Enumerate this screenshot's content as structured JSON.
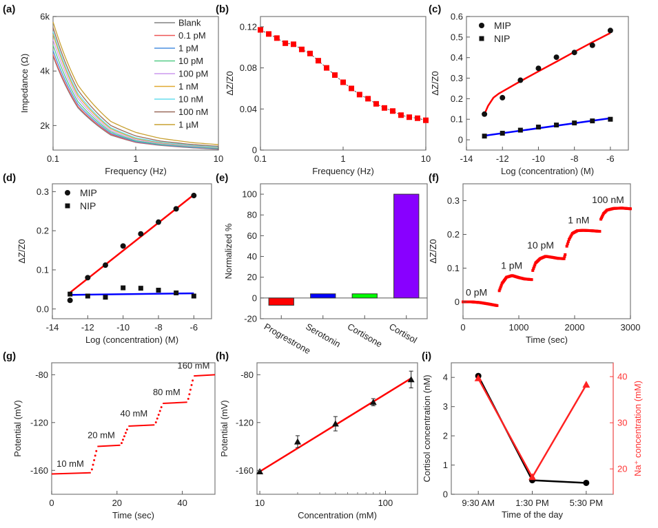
{
  "figure": {
    "panels": [
      "(a)",
      "(b)",
      "(c)",
      "(d)",
      "(e)",
      "(f)",
      "(g)",
      "(h)",
      "(i)"
    ]
  },
  "chart_data": [
    {
      "id": "a",
      "panel_label": "(a)",
      "type": "line",
      "xlabel": "Frequency (Hz)",
      "ylabel": "Impedance (Ω)",
      "xscale": "log",
      "xlim": [
        0.1,
        10
      ],
      "ylim": [
        1100,
        6000
      ],
      "xticks": [
        0.1,
        1,
        10
      ],
      "xtick_labels": [
        "0.1",
        "1",
        "10"
      ],
      "yticks": [
        2000,
        4000,
        6000
      ],
      "ytick_labels": [
        "2k",
        "4k",
        "6k"
      ],
      "legend_position": "top-right",
      "x": [
        0.1,
        0.2,
        0.5,
        1,
        2,
        5,
        10
      ],
      "series": [
        {
          "name": "Blank",
          "color": "#808080",
          "values": [
            4550,
            2650,
            1650,
            1380,
            1270,
            1180,
            1130
          ]
        },
        {
          "name": "0.1 pM",
          "color": "#ee5555",
          "values": [
            4600,
            2700,
            1680,
            1390,
            1280,
            1190,
            1140
          ]
        },
        {
          "name": "1 pM",
          "color": "#4a8fe0",
          "values": [
            4750,
            2780,
            1720,
            1410,
            1290,
            1200,
            1150
          ]
        },
        {
          "name": "10 pM",
          "color": "#55cc88",
          "values": [
            4950,
            2880,
            1770,
            1440,
            1310,
            1220,
            1170
          ]
        },
        {
          "name": "100 pM",
          "color": "#cc99ee",
          "values": [
            5150,
            3000,
            1820,
            1480,
            1340,
            1240,
            1190
          ]
        },
        {
          "name": "1 nM",
          "color": "#e0a830",
          "values": [
            5350,
            3100,
            1880,
            1520,
            1370,
            1260,
            1200
          ]
        },
        {
          "name": "10 nM",
          "color": "#66ddee",
          "values": [
            5450,
            3180,
            1920,
            1550,
            1390,
            1270,
            1210
          ]
        },
        {
          "name": "100 nM",
          "color": "#9a6a5a",
          "values": [
            5600,
            3300,
            2000,
            1620,
            1430,
            1300,
            1240
          ]
        },
        {
          "name": "1 µM",
          "color": "#c8a030",
          "values": [
            5800,
            3480,
            2150,
            1750,
            1530,
            1370,
            1300
          ]
        }
      ]
    },
    {
      "id": "b",
      "panel_label": "(b)",
      "type": "scatter",
      "xlabel": "Frequency (Hz)",
      "ylabel": "ΔZ/Z0",
      "xscale": "log",
      "xlim": [
        0.1,
        10
      ],
      "ylim": [
        0,
        0.13
      ],
      "xticks": [
        0.1,
        1,
        10
      ],
      "xtick_labels": [
        "0.1",
        "1",
        "10"
      ],
      "yticks": [
        0,
        0.04,
        0.08,
        0.12
      ],
      "ytick_labels": [
        "0",
        "0.04",
        "0.08",
        "0.12"
      ],
      "marker_color": "#ff0000",
      "x": [
        0.1,
        0.126,
        0.158,
        0.2,
        0.251,
        0.316,
        0.398,
        0.501,
        0.631,
        0.794,
        1.0,
        1.26,
        1.58,
        2.0,
        2.51,
        3.16,
        3.98,
        5.01,
        6.31,
        7.94,
        10.0
      ],
      "values": [
        0.117,
        0.113,
        0.109,
        0.104,
        0.103,
        0.098,
        0.094,
        0.087,
        0.08,
        0.073,
        0.066,
        0.06,
        0.054,
        0.05,
        0.045,
        0.041,
        0.038,
        0.034,
        0.032,
        0.031,
        0.029
      ]
    },
    {
      "id": "c",
      "panel_label": "(c)",
      "type": "scatter",
      "xlabel": "Log (concentration) (M)",
      "ylabel": "ΔZ/Z0",
      "xlim": [
        -14,
        -5
      ],
      "ylim": [
        -0.05,
        0.6
      ],
      "xticks": [
        -14,
        -12,
        -10,
        -8,
        -6
      ],
      "xtick_labels": [
        "-14",
        "-12",
        "-10",
        "-8",
        "-6"
      ],
      "yticks": [
        0,
        0.1,
        0.2,
        0.3,
        0.4,
        0.5,
        0.6
      ],
      "ytick_labels": [
        "0",
        "0.1",
        "0.2",
        "0.3",
        "0.4",
        "0.5",
        "0.6"
      ],
      "legend_position": "top-left",
      "x": [
        -13,
        -12,
        -11,
        -10,
        -9,
        -8,
        -7,
        -6
      ],
      "series": [
        {
          "name": "MIP",
          "marker": "circle",
          "fit_color": "#ff0000",
          "values": [
            0.125,
            0.205,
            0.29,
            0.348,
            0.402,
            0.425,
            0.46,
            0.532
          ],
          "fit": {
            "x": [
              -13,
              -12.8,
              -12.5,
              -12.2,
              -12,
              -11.5,
              -11,
              -10,
              -9,
              -8,
              -7,
              -6
            ],
            "y": [
              0.125,
              0.165,
              0.205,
              0.225,
              0.235,
              0.26,
              0.285,
              0.333,
              0.38,
              0.428,
              0.475,
              0.52
            ]
          }
        },
        {
          "name": "NIP",
          "marker": "square",
          "fit_color": "#0000ff",
          "values": [
            0.018,
            0.032,
            0.047,
            0.062,
            0.072,
            0.082,
            0.092,
            0.1
          ],
          "fit": {
            "x": [
              -13,
              -6
            ],
            "y": [
              0.02,
              0.105
            ]
          }
        }
      ]
    },
    {
      "id": "d",
      "panel_label": "(d)",
      "type": "scatter",
      "xlabel": "Log (concentration) (M)",
      "ylabel": "ΔZ/Z0",
      "xlim": [
        -14,
        -5
      ],
      "ylim": [
        -0.025,
        0.32
      ],
      "xticks": [
        -14,
        -12,
        -10,
        -8,
        -6
      ],
      "xtick_labels": [
        "-14",
        "-12",
        "-10",
        "-8",
        "-6"
      ],
      "yticks": [
        0,
        0.1,
        0.2,
        0.3
      ],
      "ytick_labels": [
        "0.0",
        "0.1",
        "0.2",
        "0.3"
      ],
      "legend_position": "top-left",
      "x": [
        -13,
        -12,
        -11,
        -10,
        -9,
        -8,
        -7,
        -6
      ],
      "series": [
        {
          "name": "MIP",
          "marker": "circle",
          "fit_color": "#ff0000",
          "values": [
            0.022,
            0.08,
            0.112,
            0.161,
            0.192,
            0.222,
            0.256,
            0.29
          ],
          "fit": {
            "x": [
              -13,
              -6
            ],
            "y": [
              0.042,
              0.292
            ]
          }
        },
        {
          "name": "NIP",
          "marker": "square",
          "fit_color": "#0000ff",
          "values": [
            0.038,
            0.033,
            0.03,
            0.054,
            0.053,
            0.048,
            0.041,
            0.033
          ],
          "fit": {
            "x": [
              -13,
              -6
            ],
            "y": [
              0.036,
              0.04
            ]
          }
        }
      ]
    },
    {
      "id": "e",
      "panel_label": "(e)",
      "type": "bar",
      "xlabel": "",
      "ylabel": "Normalized %",
      "ylim": [
        -20,
        110
      ],
      "yticks": [
        -20,
        0,
        20,
        40,
        60,
        80,
        100
      ],
      "ytick_labels": [
        "-20",
        "0",
        "20",
        "40",
        "60",
        "80",
        "100"
      ],
      "categories": [
        "Progrestrone",
        "Serotonin",
        "Cortisone",
        "Cortisol"
      ],
      "values": [
        -7,
        4,
        4,
        100
      ],
      "colors": [
        "#ff0000",
        "#0000ff",
        "#00ff00",
        "#8800ff"
      ]
    },
    {
      "id": "f",
      "panel_label": "(f)",
      "type": "scatter",
      "xlabel": "Time (sec)",
      "ylabel": "ΔZ/Z0",
      "ylabel_sub": "0",
      "xlim": [
        0,
        3000
      ],
      "ylim": [
        -0.05,
        0.35
      ],
      "xticks": [
        0,
        1000,
        2000,
        3000
      ],
      "xtick_labels": [
        "0",
        "1000",
        "2000",
        "3000"
      ],
      "yticks": [
        0,
        0.1,
        0.2,
        0.3
      ],
      "ytick_labels": [
        "0",
        "0.1",
        "0.2",
        "0.3"
      ],
      "marker_color": "#ff0000",
      "segments": [
        {
          "label": "0 pM",
          "x": [
            0,
            150,
            300,
            450,
            610
          ],
          "y": [
            0.0,
            0.0,
            -0.002,
            -0.006,
            -0.011
          ]
        },
        {
          "label": "1 pM",
          "x": [
            650,
            700,
            780,
            880,
            1000,
            1100,
            1230
          ],
          "y": [
            0.033,
            0.055,
            0.073,
            0.078,
            0.072,
            0.068,
            0.066
          ]
        },
        {
          "label": "10 pM",
          "x": [
            1250,
            1300,
            1380,
            1480,
            1600,
            1700,
            1810,
            1830
          ],
          "y": [
            0.093,
            0.115,
            0.128,
            0.135,
            0.132,
            0.129,
            0.128,
            0.14
          ]
        },
        {
          "label": "1 nM",
          "x": [
            1860,
            1900,
            1960,
            2050,
            2150,
            2300,
            2450
          ],
          "y": [
            0.165,
            0.185,
            0.203,
            0.211,
            0.212,
            0.211,
            0.209
          ]
        },
        {
          "label": "100 nM",
          "x": [
            2470,
            2520,
            2580,
            2700,
            2850,
            3000
          ],
          "y": [
            0.245,
            0.262,
            0.272,
            0.277,
            0.278,
            0.276
          ]
        }
      ],
      "annotations": [
        {
          "text": "0 pM",
          "x": 50,
          "y": 0.018
        },
        {
          "text": "1 pM",
          "x": 680,
          "y": 0.098
        },
        {
          "text": "10 pM",
          "x": 1150,
          "y": 0.158
        },
        {
          "text": "1 nM",
          "x": 1880,
          "y": 0.233
        },
        {
          "text": "100 nM",
          "x": 2310,
          "y": 0.293
        }
      ]
    },
    {
      "id": "g",
      "panel_label": "(g)",
      "type": "scatter",
      "xlabel": "Time (sec)",
      "ylabel": "Potential (mV)",
      "xlim": [
        0,
        50
      ],
      "ylim": [
        -180,
        -70
      ],
      "xticks": [
        0,
        20,
        40
      ],
      "xtick_labels": [
        "0",
        "20",
        "40"
      ],
      "yticks": [
        -160,
        -120,
        -80
      ],
      "ytick_labels": [
        "-160",
        "-120",
        "-80"
      ],
      "marker_color": "#ff0000",
      "steps": [
        {
          "label": "10 mM",
          "x_start": 0,
          "x_end": 12,
          "level": -163
        },
        {
          "label": "20 mM",
          "x_start": 14,
          "x_end": 21,
          "level": -140
        },
        {
          "label": "40 mM",
          "x_start": 23.5,
          "x_end": 31.5,
          "level": -123
        },
        {
          "label": "80 mM",
          "x_start": 34,
          "x_end": 41.5,
          "level": -104
        },
        {
          "label": "160 mM",
          "x_start": 43.5,
          "x_end": 50,
          "level": -81
        }
      ],
      "annotations": [
        {
          "text": "10 mM",
          "x": 1.5,
          "y": -157
        },
        {
          "text": "20 mM",
          "x": 11,
          "y": -133
        },
        {
          "text": "40 mM",
          "x": 21,
          "y": -115
        },
        {
          "text": "80 mM",
          "x": 31,
          "y": -97
        },
        {
          "text": "160 mM",
          "x": 38.5,
          "y": -75
        }
      ]
    },
    {
      "id": "h",
      "panel_label": "(h)",
      "type": "scatter",
      "xlabel": "Concentration (mM)",
      "ylabel": "Potential (mV)",
      "xscale": "log",
      "xlim": [
        9.5,
        180
      ],
      "ylim": [
        -180,
        -70
      ],
      "xticks": [
        10,
        100
      ],
      "xtick_labels": [
        "10",
        "100"
      ],
      "yticks": [
        -160,
        -120,
        -80
      ],
      "ytick_labels": [
        "-160",
        "-120",
        "-80"
      ],
      "x": [
        10,
        20,
        40,
        80,
        160
      ],
      "values": [
        -161,
        -136,
        -121,
        -103,
        -84
      ],
      "errors": [
        1,
        5,
        6,
        3,
        7
      ],
      "fit_color": "#ff0000",
      "fit": {
        "x": [
          10,
          160
        ],
        "y": [
          -161,
          -83
        ]
      }
    },
    {
      "id": "i",
      "panel_label": "(i)",
      "type": "line",
      "xlabel": "Time of the day",
      "ylabel": "Cortisol concentration (nM)",
      "ylabel_right": "Na⁺ concentration (mM)",
      "categories": [
        "9:30 AM",
        "1:30 PM",
        "5:30 PM"
      ],
      "ylim": [
        0,
        4.5
      ],
      "yticks": [
        0,
        1,
        2,
        3,
        4
      ],
      "ytick_labels": [
        "0",
        "1",
        "2",
        "3",
        "4"
      ],
      "ylim_right": [
        14.5,
        43
      ],
      "yticks_right": [
        20,
        30,
        40
      ],
      "ytick_labels_right": [
        "20",
        "30",
        "40"
      ],
      "series": [
        {
          "name": "Cortisol",
          "axis": "left",
          "color": "#000000",
          "marker": "circle",
          "values": [
            4.05,
            0.48,
            0.39
          ]
        },
        {
          "name": "Na+",
          "axis": "right",
          "color": "#ff2222",
          "marker": "triangle",
          "values": [
            39.6,
            18.2,
            38.2
          ]
        }
      ]
    }
  ]
}
